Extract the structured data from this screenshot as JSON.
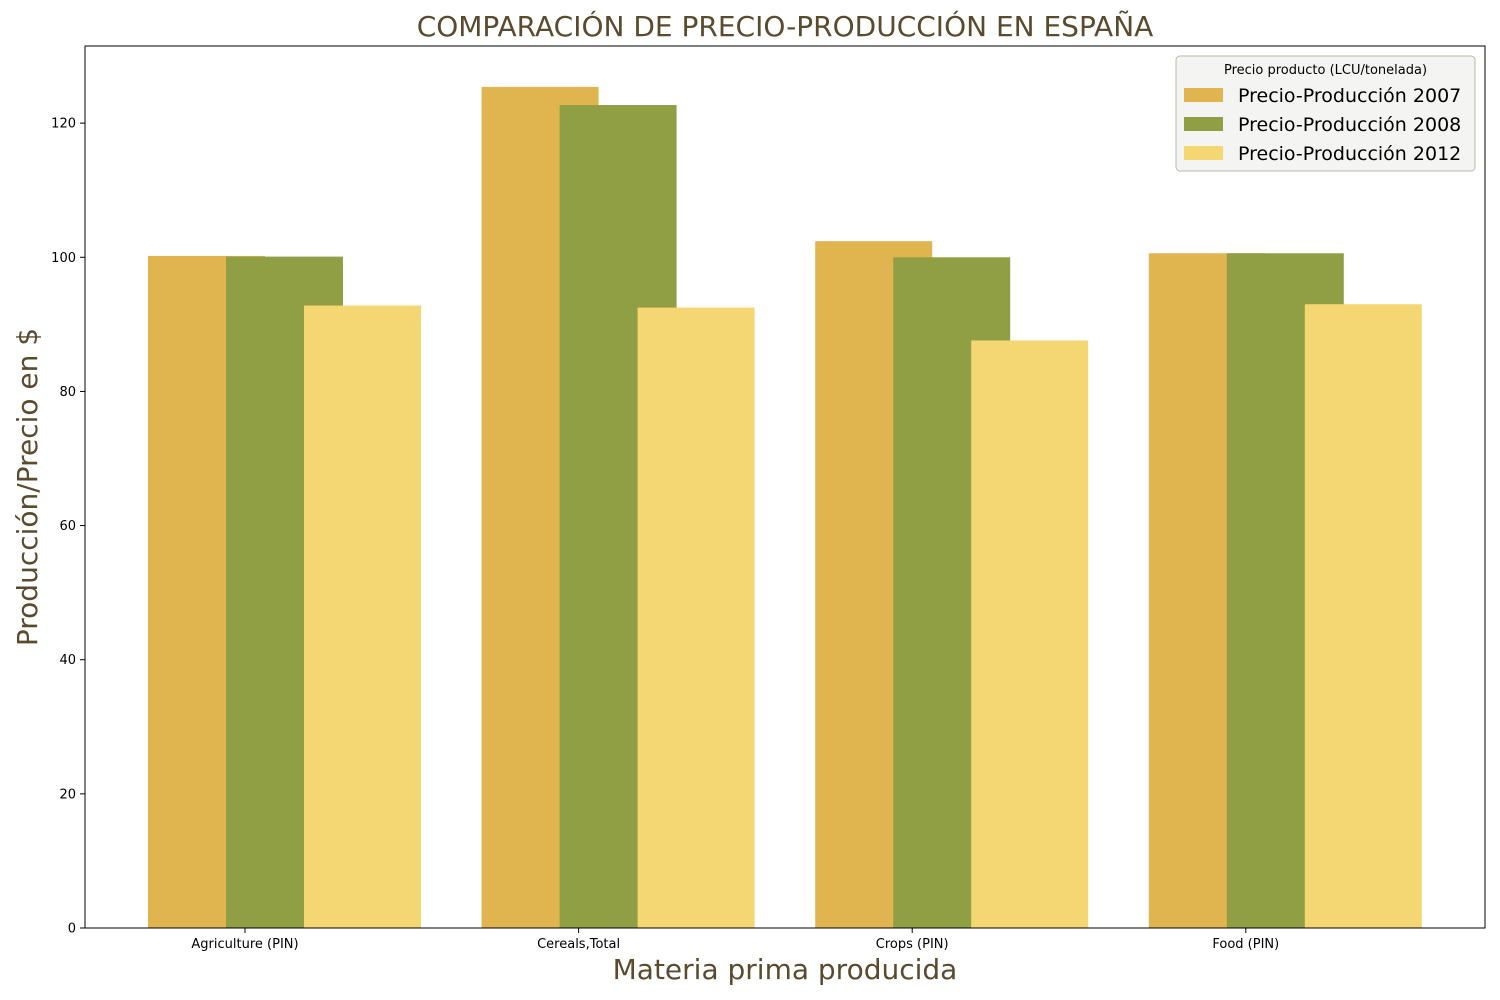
{
  "chart_data": {
    "type": "bar",
    "title": "COMPARACIÓN DE PRECIO-PRODUCCIÓN EN ESPAÑA",
    "xlabel": "Materia prima producida",
    "ylabel": "Producción/Precio en $",
    "categories": [
      "Agriculture (PIN)",
      "Cereals,Total",
      "Crops (PIN)",
      "Food (PIN)"
    ],
    "series": [
      {
        "name": "Precio-Producción 2007",
        "color": "#e0b550",
        "values": [
          100.2,
          125.4,
          102.4,
          100.6
        ]
      },
      {
        "name": "Precio-Producción 2008",
        "color": "#919f44",
        "values": [
          100.1,
          122.7,
          100.0,
          100.6
        ]
      },
      {
        "name": "Precio-Producción 2012",
        "color": "#f4d673",
        "values": [
          92.8,
          92.5,
          87.6,
          93.0
        ]
      }
    ],
    "ylim": [
      0,
      131.5
    ],
    "yticks": [
      0,
      20,
      40,
      60,
      80,
      100,
      120
    ],
    "legend": {
      "title": "Precio producto (LCU/tonelada)",
      "position": "top-right"
    },
    "grid": false
  }
}
